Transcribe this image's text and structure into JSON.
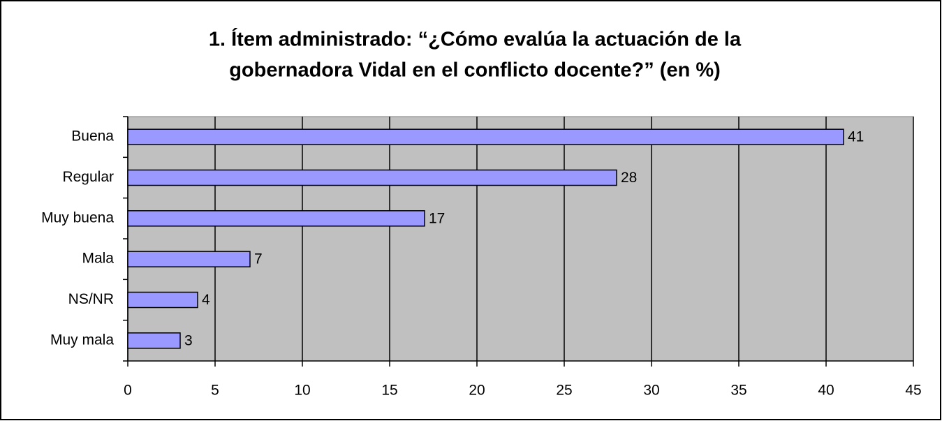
{
  "chart_data": {
    "type": "bar",
    "orientation": "horizontal",
    "title": [
      "1. Ítem administrado: “¿Cómo evalúa la actuación de la",
      "gobernadora Vidal en el conflicto docente?” (en %)"
    ],
    "categories": [
      "Buena",
      "Regular",
      "Muy buena",
      "Mala",
      "NS/NR",
      "Muy mala"
    ],
    "values": [
      41,
      28,
      17,
      7,
      4,
      3
    ],
    "color": "#9999ff",
    "xlim": [
      0,
      45
    ],
    "xticks": [
      0,
      5,
      10,
      15,
      20,
      25,
      30,
      35,
      40,
      45
    ],
    "grid": true
  }
}
